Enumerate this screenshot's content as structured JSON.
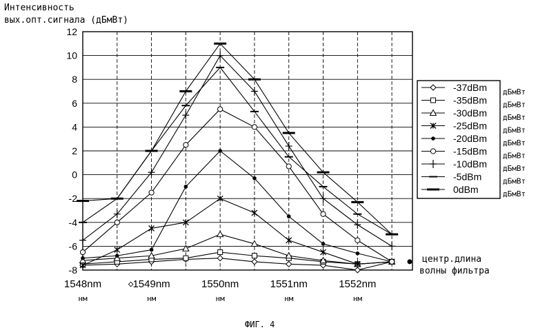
{
  "chart_data": {
    "type": "line",
    "title": "",
    "ylabel_line1": "Интенсивность",
    "ylabel_line2": "вых.опт.сигнала (дБмВт)",
    "ylim": [
      -8,
      12
    ],
    "yticks": [
      "-8",
      "-6",
      "-4",
      "-2",
      "0",
      "2",
      "4",
      "6",
      "8",
      "10",
      "12"
    ],
    "xlim": [
      1548,
      1552.8
    ],
    "x": [
      1548,
      1548.5,
      1549,
      1549.5,
      1550,
      1550.5,
      1551,
      1551.5,
      1552,
      1552.5
    ],
    "xtick_labels": [
      {
        "x": 1548,
        "label": "1548nm",
        "unit": "нм"
      },
      {
        "x": 1549,
        "label": "1549nm",
        "unit": "нм"
      },
      {
        "x": 1550,
        "label": "1550nm",
        "unit": "нм"
      },
      {
        "x": 1551,
        "label": "1551nm",
        "unit": "нм"
      },
      {
        "x": 1552,
        "label": "1552nm",
        "unit": "нм"
      }
    ],
    "x_marker_glyph": "◇",
    "x_annotation_line1": "центр.длина",
    "x_annotation_line2": "волны фильтра",
    "grid": true,
    "legend_position": "right",
    "series": [
      {
        "name": "-37dBm",
        "unit": "дБмВт",
        "marker": "diamond",
        "values": [
          -7.6,
          -7.5,
          -7.3,
          -7.1,
          -7.0,
          -7.3,
          -7.5,
          -7.6,
          -8.0,
          -7.3
        ]
      },
      {
        "name": "-35dBm",
        "unit": "дБмВт",
        "marker": "square",
        "values": [
          -7.5,
          -7.3,
          -7.1,
          -7.0,
          -6.5,
          -6.8,
          -7.0,
          -7.3,
          -7.5,
          -7.3
        ]
      },
      {
        "name": "-30dBm",
        "unit": "дБмВт",
        "marker": "triangle",
        "values": [
          -7.2,
          -7.0,
          -6.8,
          -6.2,
          -5.0,
          -5.8,
          -6.8,
          -7.2,
          -7.5,
          -7.3
        ]
      },
      {
        "name": "-25dBm",
        "unit": "дБмВт",
        "marker": "x",
        "values": [
          -7.6,
          -6.3,
          -4.5,
          -4.0,
          -2.0,
          -3.2,
          -5.5,
          -6.5,
          -7.5,
          -7.3
        ]
      },
      {
        "name": "-20dBm",
        "unit": "дБмВт",
        "marker": "dot",
        "values": [
          -7.0,
          -6.8,
          -6.3,
          -1.0,
          2.0,
          -0.3,
          -3.5,
          -5.8,
          -6.6,
          -7.3
        ]
      },
      {
        "name": "-15dBm",
        "unit": "дБмВт",
        "marker": "circle",
        "values": [
          -6.5,
          -4.0,
          -1.5,
          2.5,
          5.5,
          4.0,
          0.7,
          -3.3,
          -5.5,
          -7.3
        ]
      },
      {
        "name": "-10dBm",
        "unit": "дБмВт",
        "marker": "plus",
        "values": [
          -5.5,
          -3.3,
          0.2,
          5.0,
          10.0,
          7.0,
          2.4,
          -2.0,
          -4.2,
          -6.0
        ]
      },
      {
        "name": "-5dBm",
        "unit": "дБмВт",
        "marker": "dash",
        "values": [
          -4.0,
          -2.0,
          2.0,
          5.8,
          9.0,
          5.3,
          1.5,
          -1.0,
          -3.3,
          -5.0
        ]
      },
      {
        "name": "0dBm",
        "unit": "дБмВт",
        "marker": "bar",
        "values": [
          -2.2,
          -2.0,
          2.0,
          7.0,
          11.0,
          8.0,
          3.5,
          0.2,
          -2.3,
          -5.0
        ]
      }
    ]
  },
  "figure_caption": "ФИГ. 4"
}
